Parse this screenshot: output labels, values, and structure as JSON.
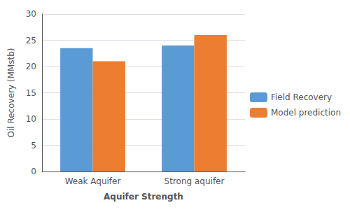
{
  "chart_data": {
    "type": "bar",
    "categories": [
      "Weak Aquifer",
      "Strong aquifer"
    ],
    "series": [
      {
        "name": "Field Recovery",
        "color": "#5B9BD5",
        "values": [
          23.5,
          24.0
        ]
      },
      {
        "name": "Model prediction",
        "color": "#ED7D31",
        "values": [
          21.0,
          26.0
        ]
      }
    ],
    "xlabel": "Aquifer Strength",
    "ylabel": "Oil Recovery (MMstb)",
    "ylim": [
      0,
      30
    ],
    "yticks": [
      0,
      5,
      10,
      15,
      20,
      25,
      30
    ],
    "grid": true,
    "legend": "right"
  }
}
